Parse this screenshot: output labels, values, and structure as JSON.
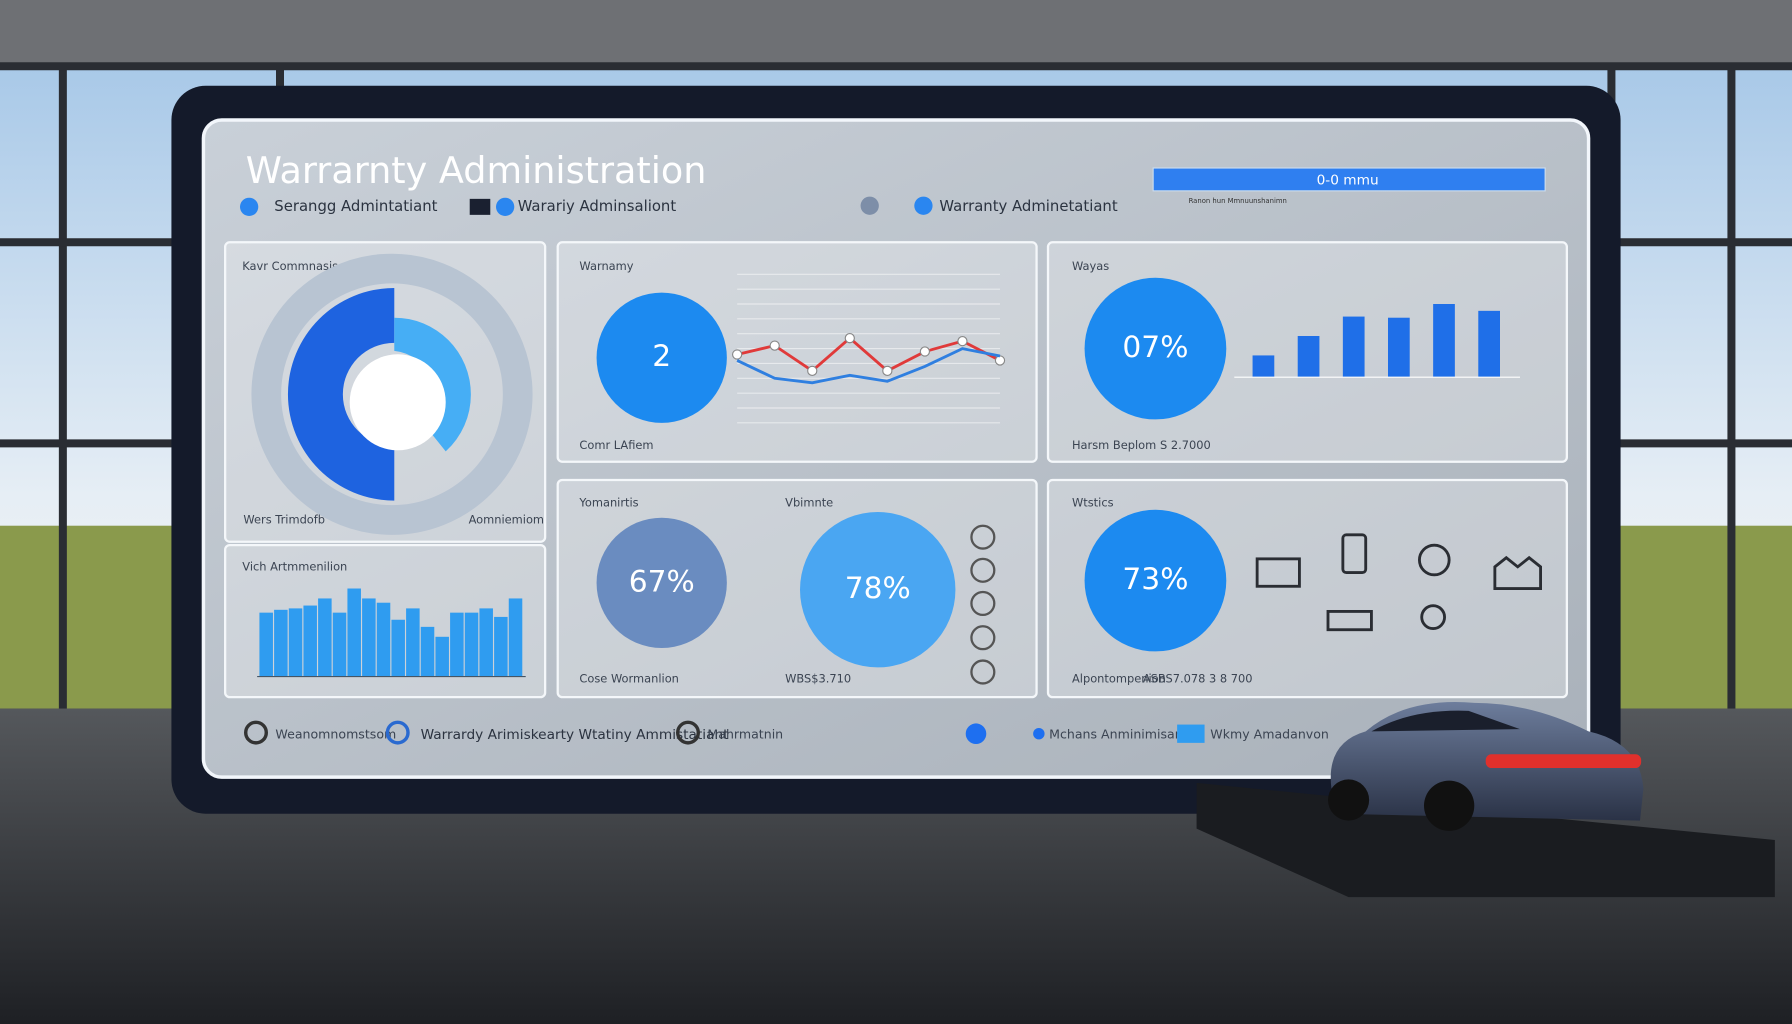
{
  "header": {
    "title": "Warrarnty Administration",
    "tabs": [
      "Serangg Admintatiant",
      "Warariy Adminsaliont",
      "Warranty Adminetatiant"
    ],
    "progress_label": "0-0 mmu",
    "progress_caption": "Ranon hun Mmnuunshanimn"
  },
  "panels": {
    "donut": {
      "title": "Kavr Commnasis",
      "left_label": "Wers Trimdofb",
      "right_label": "Aomniemiom"
    },
    "line": {
      "title": "Warnamy",
      "kpi": "2",
      "caption": "Comr LAfiem",
      "ylim": [
        0,
        100
      ],
      "series": [
        {
          "color": "#e03a3a",
          "values": [
            46,
            52,
            35,
            57,
            35,
            48,
            55,
            42
          ]
        },
        {
          "color": "#2f7fe0",
          "values": [
            42,
            30,
            27,
            32,
            28,
            38,
            50,
            45
          ]
        }
      ]
    },
    "bars": {
      "title": "Wayas",
      "kpi": "07%",
      "caption": "Harsm Beplom",
      "caption_value": "S 2.7000",
      "ylim": [
        0,
        70
      ],
      "color": "#1f6fe8",
      "values": [
        19,
        36,
        53,
        52,
        64,
        58
      ]
    },
    "histogram": {
      "title": "Vich Artmmenilion",
      "ylim": [
        0,
        70
      ],
      "color": "#2f9cf0",
      "values": [
        45,
        47,
        48,
        50,
        55,
        45,
        62,
        55,
        52,
        40,
        48,
        35,
        28,
        45,
        45,
        48,
        42,
        55
      ]
    },
    "gauges": {
      "left_title": "Yomanirtis",
      "left_kpi": "67%",
      "right_title": "Vbimnte",
      "right_kpi": "78%",
      "left_caption": "Cose Wormanlion",
      "right_caption": "WBS$3.710"
    },
    "icons": {
      "title": "Wtstics",
      "kpi": "73%",
      "caption": "Alpontompenion",
      "caption_value": "ASBS7.078 3 8 700"
    }
  },
  "footer": {
    "items": [
      "Weanomnomstsom",
      "Warrardy Arimiskearty Wtatiny Ammistatiant",
      "Mahrmatnin",
      "Mchans Anminimisan",
      "Wkmy Amadanvon"
    ]
  }
}
